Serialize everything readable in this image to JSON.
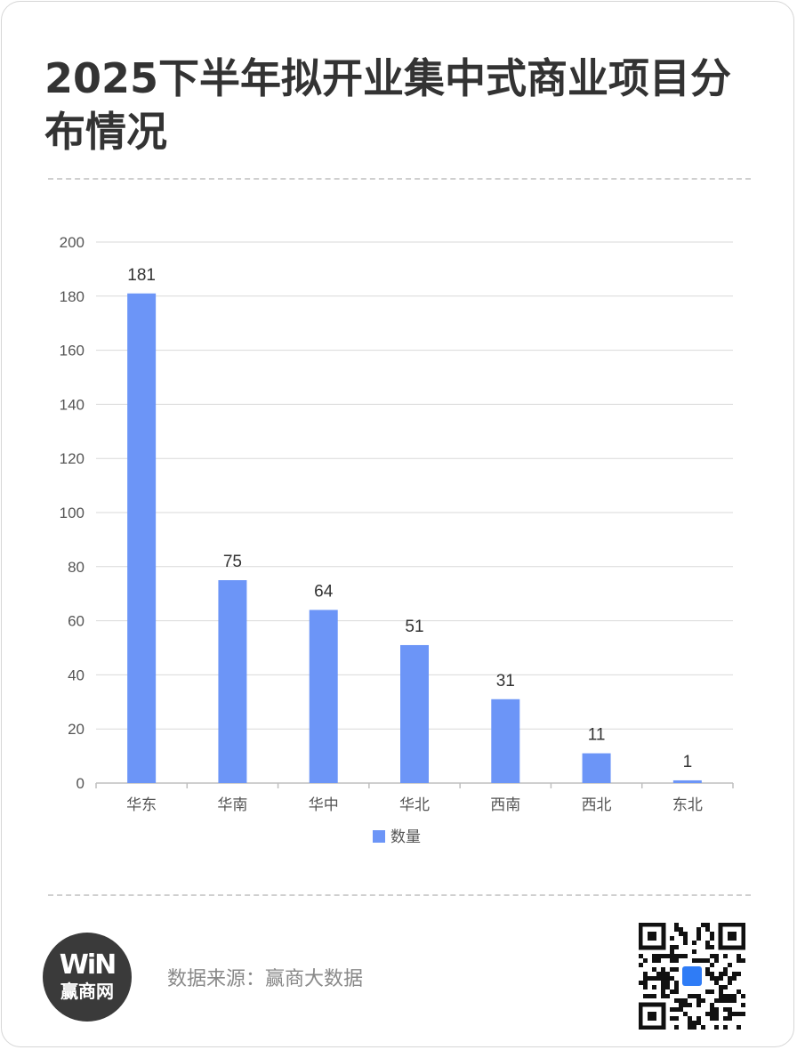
{
  "title": "2025下半年拟开业集中式商业项目分布情况",
  "source": "数据来源：赢商大数据",
  "logo": {
    "mark": "WiN",
    "text": "赢商网"
  },
  "icons": {
    "qr": "qr-code-icon"
  },
  "colors": {
    "bar": "#6C95F7",
    "title": "#333333",
    "axis_text": "#555555",
    "label": "#333333",
    "grid": "#d9d9d9"
  },
  "chart_data": {
    "type": "bar",
    "categories": [
      "华东",
      "华南",
      "华中",
      "华北",
      "西南",
      "西北",
      "东北"
    ],
    "series": [
      {
        "name": "数量",
        "values": [
          181,
          75,
          64,
          51,
          31,
          11,
          1
        ]
      }
    ],
    "yticks": [
      0,
      20,
      40,
      60,
      80,
      100,
      120,
      140,
      160,
      180,
      200
    ],
    "ylim": [
      0,
      200
    ],
    "grid": true,
    "legend": "bottom",
    "data_labels": true
  }
}
